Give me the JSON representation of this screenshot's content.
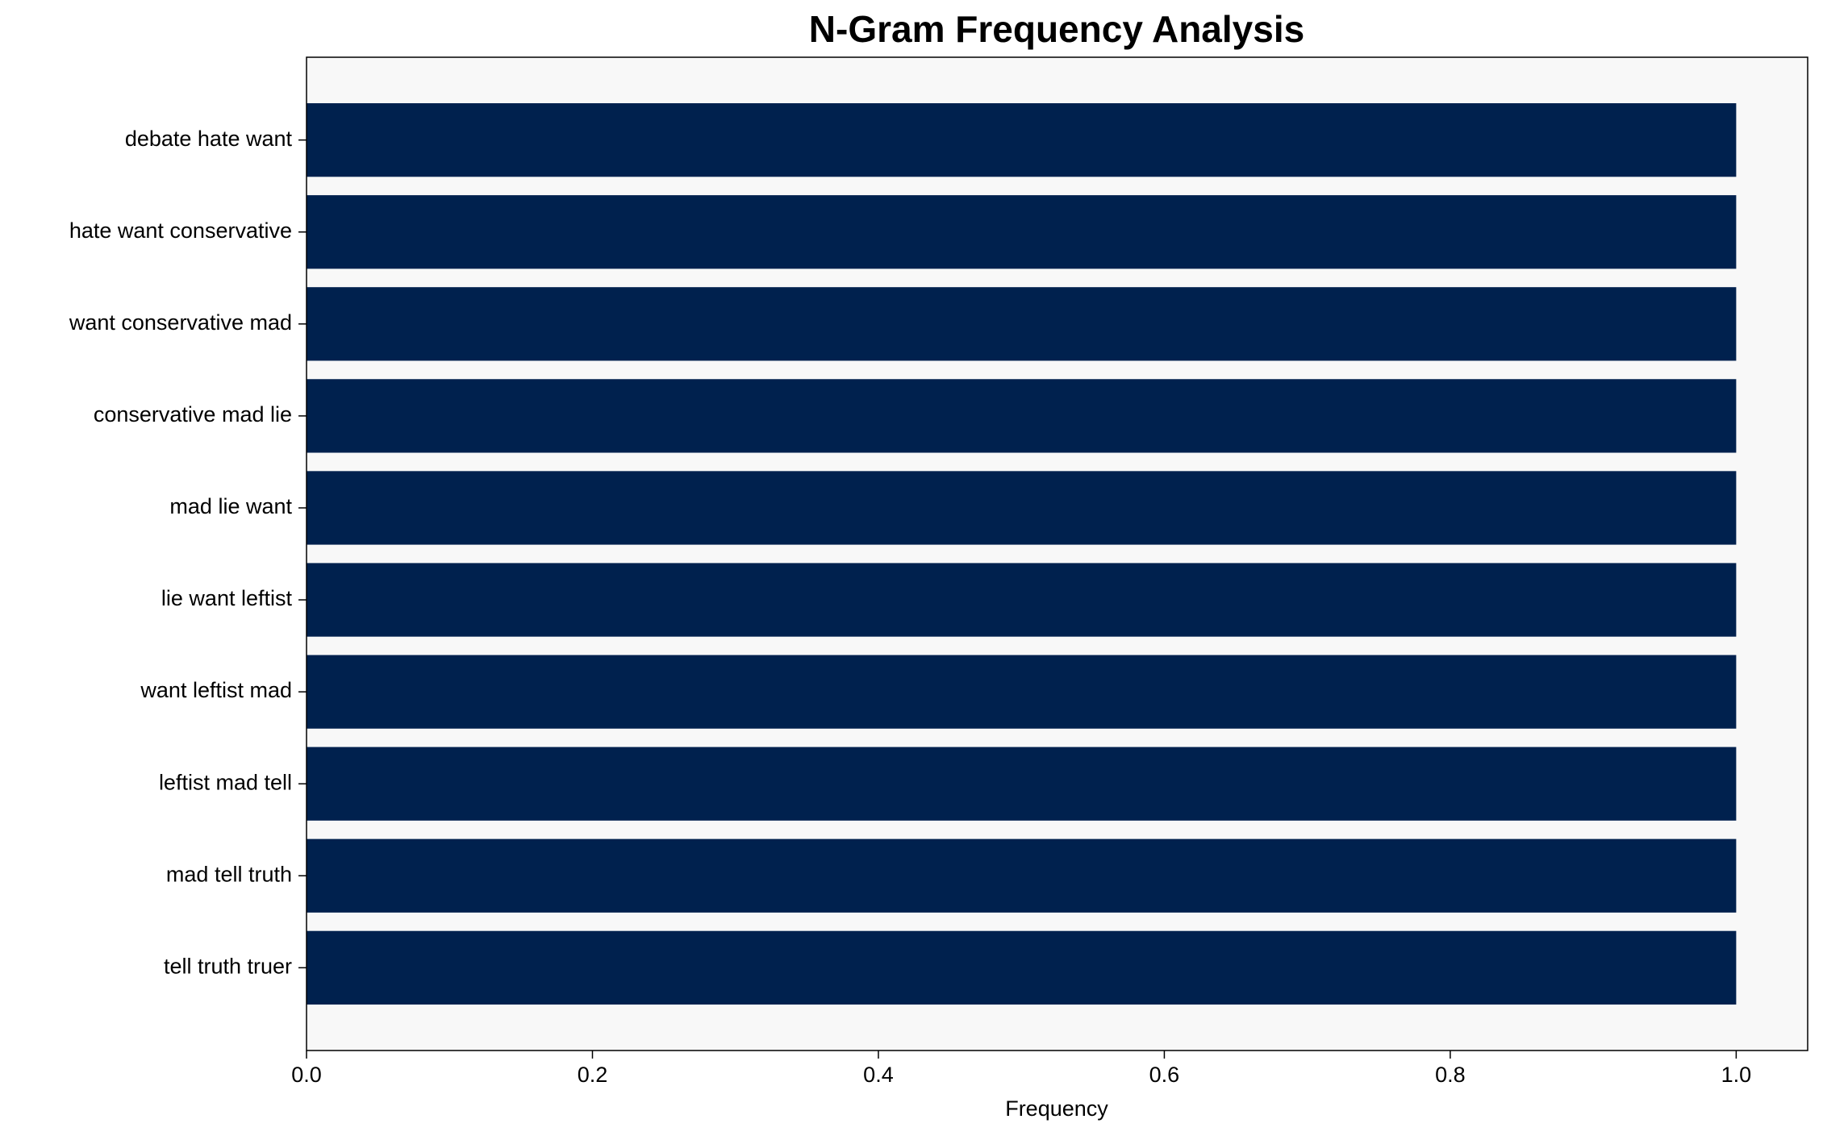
{
  "chart_data": {
    "type": "barh",
    "title": "N-Gram Frequency Analysis",
    "x_label": "Frequency",
    "categories": [
      "debate hate want",
      "hate want conservative",
      "want conservative mad",
      "conservative mad lie",
      "mad lie want",
      "lie want leftist",
      "want leftist mad",
      "leftist mad tell",
      "mad tell truth",
      "tell truth truer"
    ],
    "values": [
      1,
      1,
      1,
      1,
      1,
      1,
      1,
      1,
      1,
      1
    ],
    "color": "#00214e",
    "background": "#f8f8f8",
    "xlim": [
      0,
      1.05
    ],
    "xticks": [
      {
        "value": 0,
        "label": "0.0"
      },
      0.2,
      0.4,
      0.6,
      0.8,
      {
        "value": 1,
        "label": "1.0"
      }
    ]
  }
}
